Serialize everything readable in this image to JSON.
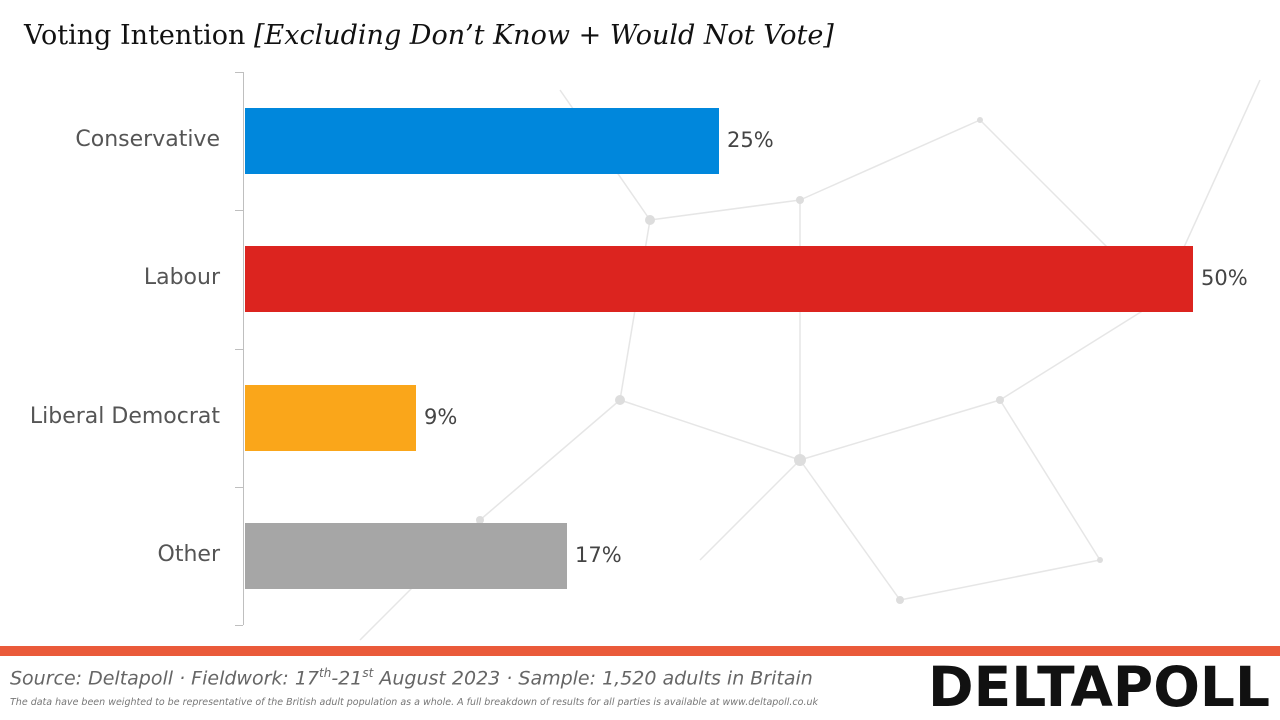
{
  "title": "Voting Intention",
  "subtitle": "[Excluding Don’t Know + Would Not Vote]",
  "chart_data": {
    "type": "bar",
    "orientation": "horizontal",
    "categories": [
      "Conservative",
      "Labour",
      "Liberal Democrat",
      "Other"
    ],
    "values": [
      25,
      50,
      9,
      17
    ],
    "value_labels": [
      "25%",
      "50%",
      "9%",
      "17%"
    ],
    "colors": [
      "#0087dc",
      "#dc241f",
      "#faa61a",
      "#a6a6a6"
    ],
    "xlim": [
      0,
      50
    ],
    "grid": false,
    "legend": "none"
  },
  "footer": {
    "source_prefix": "Source: Deltapoll · Fieldwork: 17",
    "source_sup1": "th",
    "source_mid": "-21",
    "source_sup2": "st",
    "source_suffix": " August 2023 · Sample: 1,520 adults in Britain",
    "disclaimer": "The data have been weighted to be representative of the British adult population as a whole. A full breakdown of results for all parties is available at www.deltapoll.co.uk",
    "accent_color": "#ea5a3a"
  },
  "logo": {
    "text": "DELTAPOLL"
  }
}
